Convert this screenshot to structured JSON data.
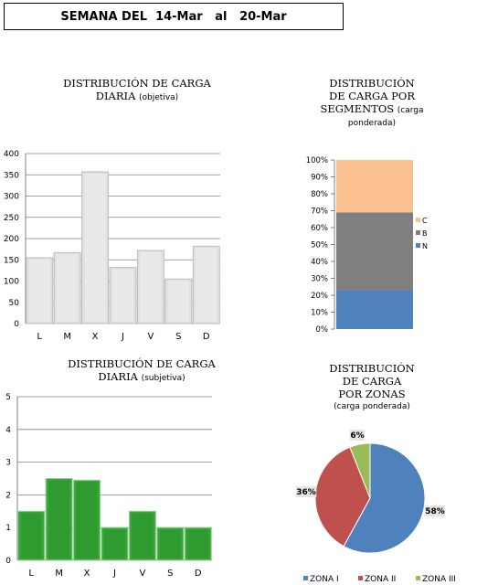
{
  "header": {
    "label_prefix": "SEMANA DEL",
    "date_from": "14-Mar",
    "label_mid": "al",
    "date_to": "20-Mar"
  },
  "chart_data": [
    {
      "id": "objetiva",
      "type": "bar",
      "title": "DISTRIBUCIÓN DE CARGA",
      "title_line2": "DIARIA",
      "subtitle": "(objetiva)",
      "categories": [
        "L",
        "M",
        "X",
        "J",
        "V",
        "S",
        "D"
      ],
      "values": [
        155,
        167,
        357,
        132,
        172,
        105,
        182
      ],
      "ylim": [
        0,
        400
      ],
      "yticks": [
        0,
        50,
        100,
        150,
        200,
        250,
        300,
        350,
        400
      ],
      "grid": true,
      "color": "#e0e0e0"
    },
    {
      "id": "segmentos",
      "type": "bar",
      "stacked": true,
      "title": "DISTRIBUCIÓN",
      "title_line2": "DE CARGA POR",
      "title_line3": "SEGMENTOS",
      "subtitle": "(carga",
      "subtitle_line2": "ponderada)",
      "yticks": [
        "0%",
        "10%",
        "20%",
        "30%",
        "40%",
        "50%",
        "60%",
        "70%",
        "80%",
        "90%",
        "100%"
      ],
      "ylim": [
        0,
        100
      ],
      "series": [
        {
          "name": "N",
          "value": 23,
          "color": "#4f81bd"
        },
        {
          "name": "B",
          "value": 46,
          "color": "#7f7f7f"
        },
        {
          "name": "C",
          "value": 31,
          "color": "#fac090"
        }
      ],
      "legend": "right"
    },
    {
      "id": "subjetiva",
      "type": "bar",
      "title": "DISTRIBUCIÓN DE CARGA",
      "title_line2": "DIARIA",
      "subtitle": "(subjetiva)",
      "categories": [
        "L",
        "M",
        "X",
        "J",
        "V",
        "S",
        "D"
      ],
      "values": [
        1.5,
        2.5,
        2.45,
        1.0,
        1.5,
        1.0,
        1.0
      ],
      "ylim": [
        0,
        5
      ],
      "yticks": [
        0,
        1,
        2,
        3,
        4,
        5
      ],
      "grid": true,
      "color": "#3aa63a"
    },
    {
      "id": "zonas",
      "type": "pie",
      "title": "DISTRIBUCIÓN",
      "title_line2": "DE CARGA",
      "title_line3": "POR ZONAS",
      "subtitle": "(carga ponderada)",
      "series": [
        {
          "name": "ZONA I",
          "value": 58,
          "label": "58%",
          "color": "#4f81bd"
        },
        {
          "name": "ZONA II",
          "value": 36,
          "label": "36%",
          "color": "#c0504d"
        },
        {
          "name": "ZONA III",
          "value": 6,
          "label": "6%",
          "color": "#9bbb59"
        }
      ],
      "legend": "bottom"
    }
  ]
}
